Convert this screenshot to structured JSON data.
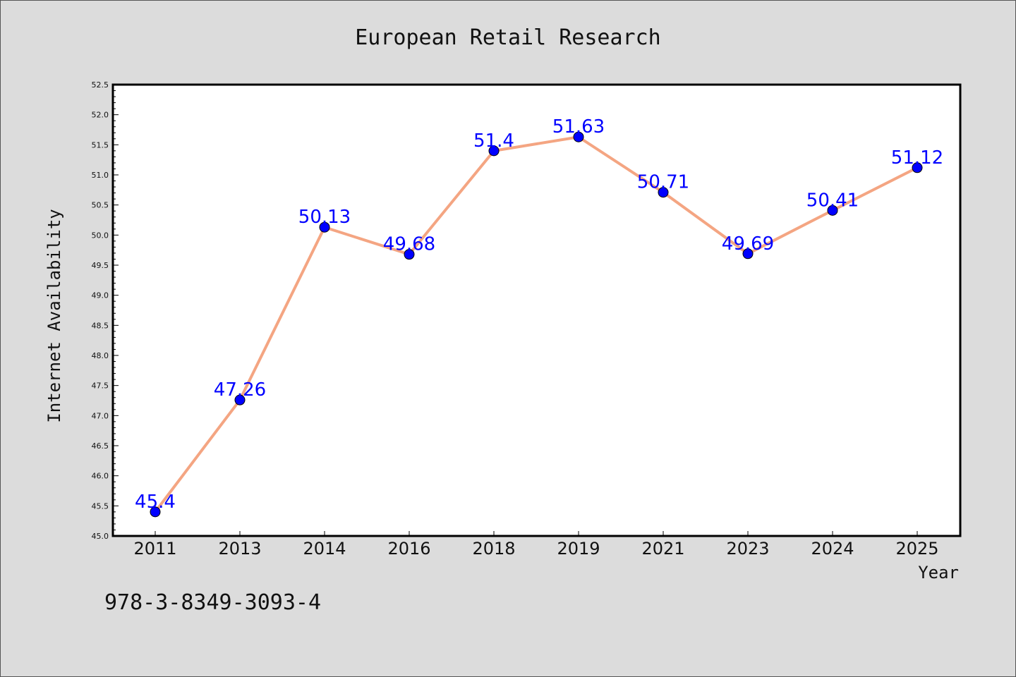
{
  "chart_data": {
    "type": "line",
    "title": "European Retail Research",
    "xlabel": "Year",
    "ylabel": "Internet Availability",
    "categories": [
      "2011",
      "2013",
      "2014",
      "2016",
      "2018",
      "2019",
      "2021",
      "2023",
      "2024",
      "2025"
    ],
    "series": [
      {
        "values": [
          45.4,
          47.26,
          50.13,
          49.68,
          51.4,
          51.63,
          50.71,
          49.69,
          50.41,
          51.12
        ],
        "line_color": "#f4a582",
        "marker_color": "#0000ff"
      }
    ],
    "data_labels": [
      "45.4",
      "47.26",
      "50.13",
      "49.68",
      "51.4",
      "51.63",
      "50.71",
      "49.69",
      "50.41",
      "51.12"
    ],
    "ylim": [
      45.0,
      52.5
    ],
    "yticks": [
      "45.0",
      "45.5",
      "46.0",
      "46.5",
      "47.0",
      "47.5",
      "48.0",
      "48.5",
      "49.0",
      "49.5",
      "50.0",
      "50.5",
      "51.0",
      "51.5",
      "52.0",
      "52.5"
    ],
    "grid": false,
    "legend": "none"
  },
  "annotation": "978-3-8349-3093-4",
  "colors": {
    "background": "#dcdcdc",
    "plot_area": "#ffffff",
    "line": "#f4a582",
    "marker": "#0000ff",
    "label_text": "#0000ff"
  }
}
